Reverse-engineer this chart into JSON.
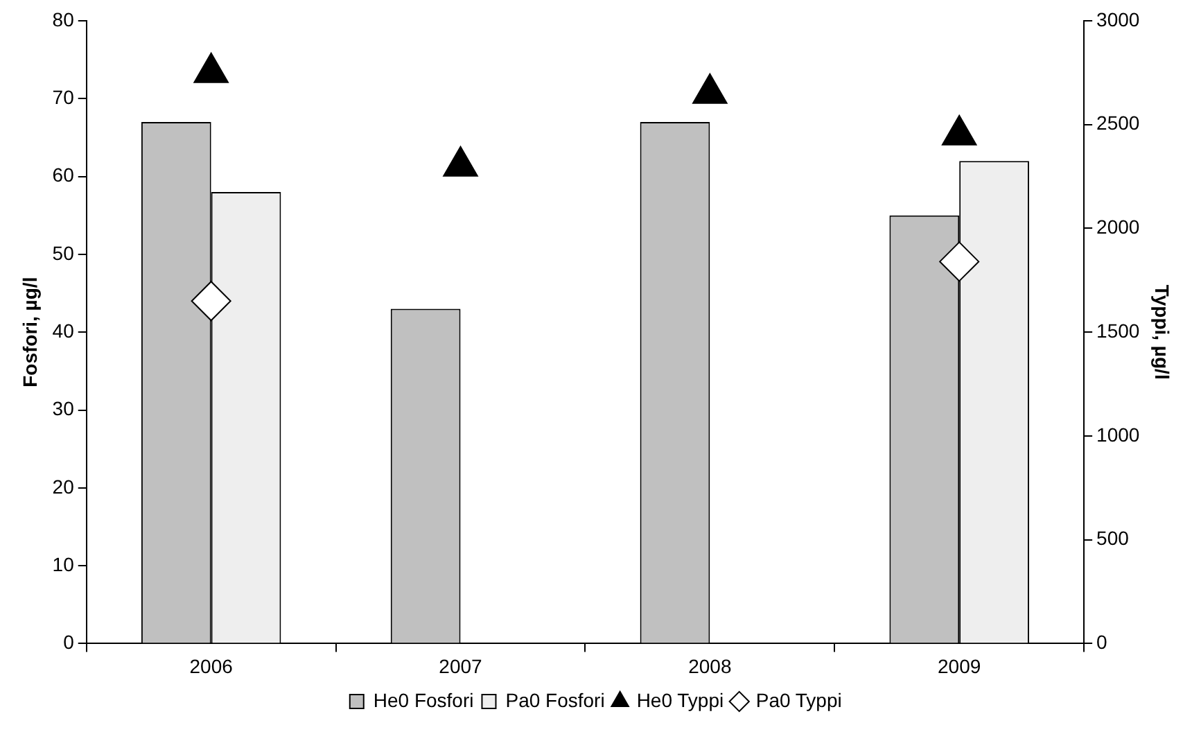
{
  "chart_data": {
    "type": "bar",
    "categories": [
      "2006",
      "2007",
      "2008",
      "2009"
    ],
    "ylabel": "Fosfori, µg/l",
    "y2label": "Typpi, µg/l",
    "ylim": [
      0,
      80
    ],
    "yticks": [
      0,
      10,
      20,
      30,
      40,
      50,
      60,
      70,
      80
    ],
    "y2lim": [
      0,
      3000
    ],
    "y2ticks": [
      0,
      500,
      1000,
      1500,
      2000,
      2500,
      3000
    ],
    "grid": false,
    "legend": "bottom",
    "series": [
      {
        "name": "He0 Fosfori",
        "color": "#c0c0c0",
        "values": [
          67,
          43,
          67,
          55
        ]
      },
      {
        "name": "Pa0 Fosfori",
        "color": "#eeeeee",
        "values": [
          58,
          null,
          null,
          62
        ]
      },
      {
        "name": "He0 Typpi",
        "type": "scatter",
        "axis": "y2",
        "marker": "triangle",
        "color": "#000000",
        "values": [
          2750,
          2300,
          2650,
          2450
        ]
      },
      {
        "name": "Pa0 Typpi",
        "type": "scatter",
        "axis": "y2",
        "marker": "diamond",
        "color": "#ffffff",
        "values": [
          1650,
          null,
          null,
          1840
        ]
      }
    ]
  }
}
